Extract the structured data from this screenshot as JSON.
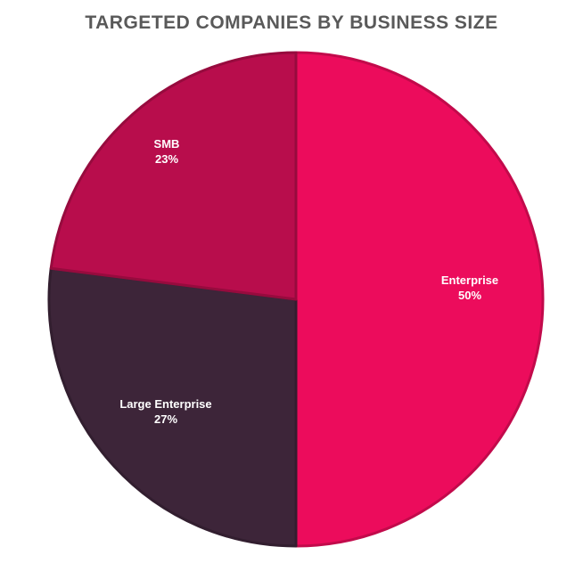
{
  "chart_data": {
    "type": "pie",
    "title": "TARGETED COMPANIES BY BUSINESS SIZE",
    "slices": [
      {
        "label": "Enterprise",
        "value": 50,
        "value_label": "50%",
        "color": "#EC0C5C"
      },
      {
        "label": "Large Enterprise",
        "value": 27,
        "value_label": "27%",
        "color": "#3D2539"
      },
      {
        "label": "SMB",
        "value": 23,
        "value_label": "23%",
        "color": "#B80D4C"
      }
    ],
    "start": "12 o'clock",
    "direction": "clockwise",
    "legend": "none"
  }
}
